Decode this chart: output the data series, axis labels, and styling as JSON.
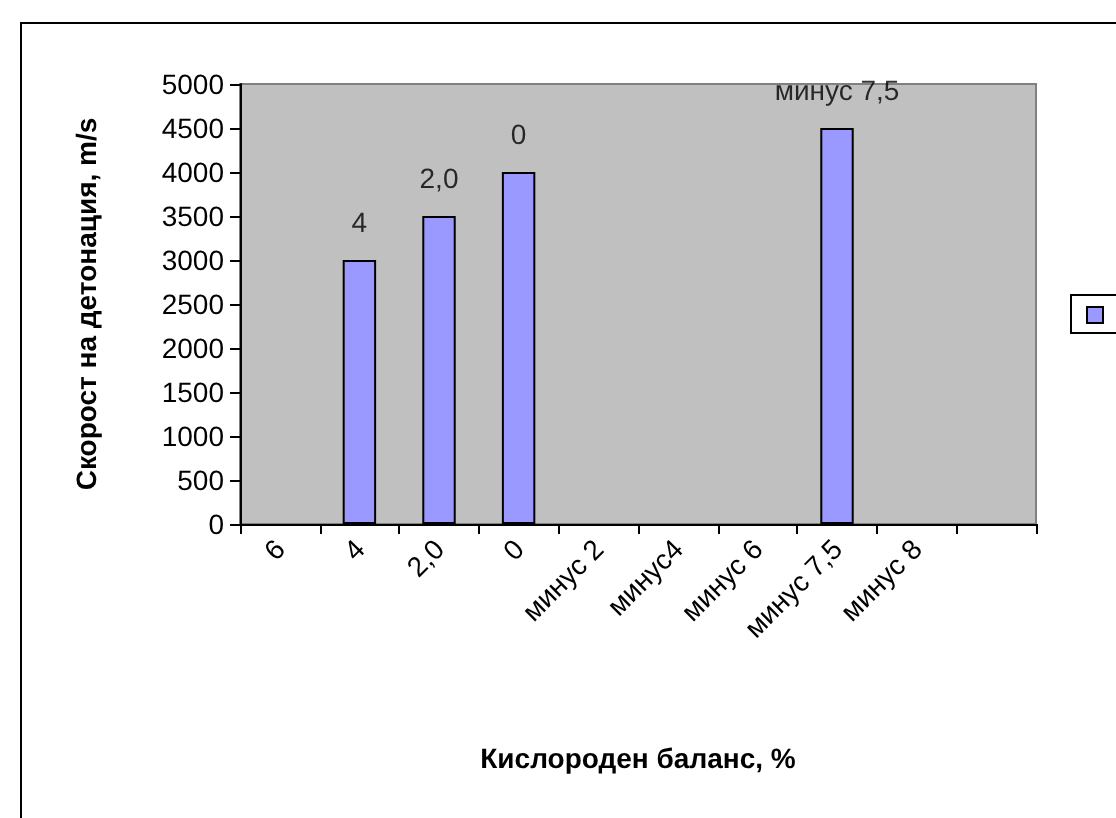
{
  "chart_data": {
    "type": "bar",
    "xlabel": "Кислороден баланс, %",
    "ylabel": "Скорост на детонация, m/s",
    "categories": [
      "6",
      "4",
      "2,0",
      "0",
      "минус 2",
      "минус4",
      "минус 6",
      "минус 7,5",
      "минус 8",
      null
    ],
    "series": [
      {
        "color": "#9999ff",
        "values": [
          null,
          3000,
          3500,
          4000,
          null,
          null,
          null,
          4500,
          null,
          null
        ]
      }
    ],
    "annotations": [
      {
        "text": "4",
        "x": "4",
        "y": 3000
      },
      {
        "text": "2,0",
        "x": "2,0",
        "y": 3500
      },
      {
        "text": "0",
        "x": "0",
        "y": 4000
      },
      {
        "text": "минус 7,5",
        "x": "минус 7,5",
        "y": 4500
      }
    ],
    "ylim": [
      0,
      5000
    ],
    "yticks": [
      0,
      500,
      1000,
      1500,
      2000,
      2500,
      3000,
      3500,
      4000,
      4500,
      5000
    ],
    "grid": false
  }
}
